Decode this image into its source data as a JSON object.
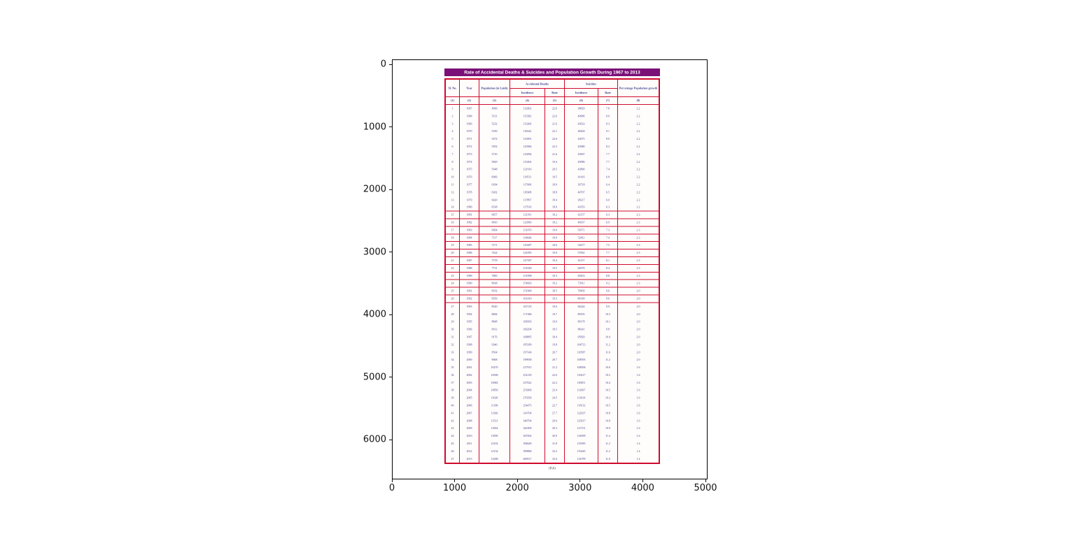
{
  "figure": {
    "caption": "(P.A)",
    "x_ticks": [
      "0",
      "1000",
      "2000",
      "3000",
      "4000",
      "5000"
    ],
    "y_ticks": [
      "0",
      "1000",
      "2000",
      "3000",
      "4000",
      "5000",
      "6000"
    ]
  },
  "chart_data": {
    "type": "table",
    "title": "Rate of Accidental Deaths & Suicides and Population Growth During 1967 to 2013",
    "headers": {
      "sl_no": "Sl. No.",
      "year": "Year",
      "population": "Population (in Lakh)",
      "growth": "Percentage Population growth"
    },
    "group_headers": {
      "accidental": "Accidental Deaths",
      "suicides": "Suicides"
    },
    "sub_headers": {
      "incidence": "Incidence",
      "rate": "Rate"
    },
    "columns": [
      "Sl. No.",
      "Year",
      "Population (in Lakh)",
      "Accidental Deaths - Incidence",
      "Accidental Deaths - Rate",
      "Suicides - Incidence",
      "Suicides - Rate",
      "Percentage Population growth"
    ],
    "column_numbers": [
      "(1)",
      "(2)",
      "(3)",
      "(4)",
      "(5)",
      "(6)",
      "(7)",
      "(8)"
    ],
    "red_rule_rows": [
      14,
      15,
      16,
      17,
      18,
      19,
      20,
      21,
      22,
      23,
      24,
      25,
      26
    ],
    "rows": [
      [
        1,
        1967,
        4996,
        112902,
        "22.6",
        38829,
        "7.8",
        "2.2"
      ],
      [
        2,
        1968,
        5113,
        115382,
        "22.6",
        40986,
        "8.0",
        "2.2"
      ],
      [
        3,
        1969,
        5232,
        113206,
        "21.6",
        43633,
        "8.3",
        "2.2"
      ],
      [
        4,
        1970,
        5350,
        118242,
        "22.1",
        48428,
        "9.1",
        "2.2"
      ],
      [
        5,
        1971,
        5474,
        123901,
        "22.6",
        43675,
        "8.0",
        "2.2"
      ],
      [
        6,
        1972,
        5592,
        125984,
        "22.5",
        45980,
        "8.2",
        "2.2"
      ],
      [
        7,
        1973,
        5710,
        123094,
        "21.6",
        43907,
        "7.7",
        "2.2"
      ],
      [
        8,
        1974,
        5829,
        113204,
        "19.4",
        45086,
        "7.7",
        "2.2"
      ],
      [
        9,
        1975,
        5948,
        121916,
        "20.5",
        43890,
        "7.4",
        "2.2"
      ],
      [
        10,
        1976,
        6066,
        118511,
        "19.5",
        41416,
        "6.8",
        "2.2"
      ],
      [
        11,
        1977,
        6184,
        117006,
        "18.9",
        39718,
        "6.4",
        "2.2"
      ],
      [
        12,
        1978,
        6302,
        118308,
        "18.8",
        40707,
        "6.5",
        "2.2"
      ],
      [
        13,
        1979,
        6420,
        117897,
        "18.4",
        38217,
        "6.0",
        "2.2"
      ],
      [
        14,
        1980,
        6538,
        117919,
        "18.0",
        41053,
        "6.3",
        "2.2"
      ],
      [
        15,
        1981,
        6657,
        121191,
        "18.2",
        42157,
        "6.3",
        "2.3"
      ],
      [
        16,
        1982,
        6810,
        123983,
        "18.2",
        46937,
        "6.9",
        "2.3"
      ],
      [
        17,
        1983,
        6964,
        131970,
        "19.0",
        50571,
        "7.3",
        "2.3"
      ],
      [
        18,
        1984,
        7117,
        134646,
        "18.9",
        52811,
        "7.4",
        "2.3"
      ],
      [
        19,
        1985,
        7271,
        135287,
        "18.6",
        54477,
        "7.5",
        "2.3"
      ],
      [
        20,
        1986,
        7424,
        141095,
        "19.0",
        57061,
        "7.7",
        "2.3"
      ],
      [
        21,
        1987,
        7578,
        147187,
        "19.4",
        61157,
        "8.1",
        "2.3"
      ],
      [
        22,
        1988,
        7731,
        151029,
        "19.5",
        64970,
        "8.4",
        "2.3"
      ],
      [
        23,
        1989,
        7885,
        151998,
        "19.3",
        69453,
        "8.8",
        "2.3"
      ],
      [
        24,
        1990,
        8038,
        154663,
        "19.2",
        73911,
        "9.2",
        "2.3"
      ],
      [
        25,
        1991,
        8192,
        151900,
        "18.5",
        78450,
        "9.6",
        "2.0"
      ],
      [
        26,
        1992,
        8356,
        161410,
        "19.3",
        80149,
        "9.6",
        "2.0"
      ],
      [
        27,
        1993,
        8520,
        167135,
        "19.6",
        84244,
        "9.9",
        "2.0"
      ],
      [
        28,
        1994,
        8684,
        171386,
        "19.7",
        89195,
        "10.3",
        "2.0"
      ],
      [
        29,
        1995,
        8848,
        168393,
        "19.0",
        89178,
        "10.1",
        "2.0"
      ],
      [
        30,
        1996,
        9012,
        166294,
        "18.5",
        88241,
        "9.8",
        "2.0"
      ],
      [
        31,
        1997,
        9176,
        168895,
        "18.4",
        95829,
        "10.4",
        "2.0"
      ],
      [
        32,
        1998,
        9340,
        185189,
        "19.8",
        104713,
        "11.2",
        "2.0"
      ],
      [
        33,
        1999,
        9504,
        197146,
        "20.7",
        110587,
        "11.6",
        "2.0"
      ],
      [
        34,
        2000,
        9668,
        199838,
        "20.7",
        108593,
        "11.2",
        "2.0"
      ],
      [
        35,
        2001,
        10270,
        217915,
        "21.2",
        108506,
        "10.6",
        "1.6"
      ],
      [
        36,
        2002,
        10506,
        231218,
        "22.0",
        110417,
        "10.5",
        "1.6"
      ],
      [
        37,
        2003,
        10682,
        237022,
        "22.2",
        110851,
        "10.4",
        "1.6"
      ],
      [
        38,
        2004,
        10856,
        253909,
        "23.4",
        113697,
        "10.5",
        "1.6"
      ],
      [
        39,
        2005,
        11028,
        270356,
        "24.5",
        113914,
        "10.3",
        "1.6"
      ],
      [
        40,
        2006,
        11198,
        254475,
        "22.7",
        118112,
        "10.5",
        "1.6"
      ],
      [
        41,
        2007,
        11366,
        314704,
        "27.7",
        122637,
        "10.8",
        "1.6"
      ],
      [
        42,
        2008,
        11531,
        340794,
        "29.6",
        125017,
        "10.8",
        "1.6"
      ],
      [
        43,
        2009,
        11694,
        342309,
        "29.3",
        127151,
        "10.9",
        "1.6"
      ],
      [
        44,
        2010,
        11858,
        367002,
        "30.9",
        134599,
        "11.4",
        "1.6"
      ],
      [
        45,
        2011,
        12102,
        384649,
        "31.8",
        135585,
        "11.2",
        "1.4"
      ],
      [
        46,
        2012,
        12134,
        390884,
        "32.2",
        135445,
        "11.2",
        "1.4"
      ],
      [
        47,
        2013,
        12288,
        400517,
        "32.6",
        134799,
        "11.0",
        "1.4"
      ]
    ]
  }
}
